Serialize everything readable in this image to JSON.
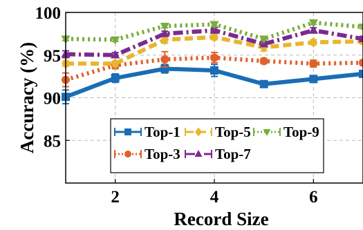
{
  "chart_data": {
    "type": "line",
    "title": "",
    "xlabel": "Record Size",
    "ylabel": "Accuracy (%)",
    "x": [
      1,
      2,
      3,
      4,
      5,
      6,
      7
    ],
    "xlim": [
      1,
      7
    ],
    "ylim": [
      80,
      100
    ],
    "xticks": [
      2,
      4,
      6
    ],
    "yticks": [
      85,
      90,
      95,
      100
    ],
    "grid": true,
    "legend_position": "lower-center",
    "series": [
      {
        "name": "Top-1",
        "color": "#1a6db5",
        "linestyle": "solid",
        "marker": "square",
        "values": [
          90.1,
          92.3,
          93.4,
          93.2,
          91.6,
          92.2,
          92.8
        ],
        "errors": [
          0.8,
          0.5,
          0.5,
          0.7,
          0.3,
          0.4,
          0.4
        ]
      },
      {
        "name": "Top-3",
        "color": "#e0602b",
        "linestyle": "dotted",
        "marker": "circle",
        "values": [
          92.1,
          93.8,
          94.5,
          94.7,
          94.3,
          94.0,
          94.1
        ],
        "errors": [
          0.8,
          0.4,
          0.9,
          0.6,
          0.3,
          0.4,
          0.3
        ]
      },
      {
        "name": "Top-5",
        "color": "#e8b52c",
        "linestyle": "dashed",
        "marker": "diamond",
        "values": [
          94.0,
          94.0,
          96.8,
          97.1,
          95.9,
          96.5,
          96.6
        ],
        "errors": [
          0.3,
          0.3,
          0.4,
          0.3,
          0.4,
          0.3,
          0.3
        ]
      },
      {
        "name": "Top-7",
        "color": "#7b2a8e",
        "linestyle": "dashdot",
        "marker": "triangle-up",
        "values": [
          95.1,
          95.0,
          97.5,
          97.9,
          96.3,
          97.9,
          96.9
        ],
        "errors": [
          0.4,
          0.3,
          0.3,
          0.3,
          0.3,
          0.3,
          0.3
        ]
      },
      {
        "name": "Top-9",
        "color": "#79ad3b",
        "linestyle": "dotted",
        "marker": "triangle-down",
        "values": [
          96.9,
          96.8,
          98.4,
          98.6,
          96.9,
          98.8,
          98.3
        ],
        "errors": [
          0.2,
          0.2,
          0.2,
          0.2,
          0.2,
          0.2,
          0.2
        ]
      }
    ],
    "legend_order": [
      "Top-1",
      "Top-5",
      "Top-9",
      "Top-3",
      "Top-7"
    ]
  }
}
